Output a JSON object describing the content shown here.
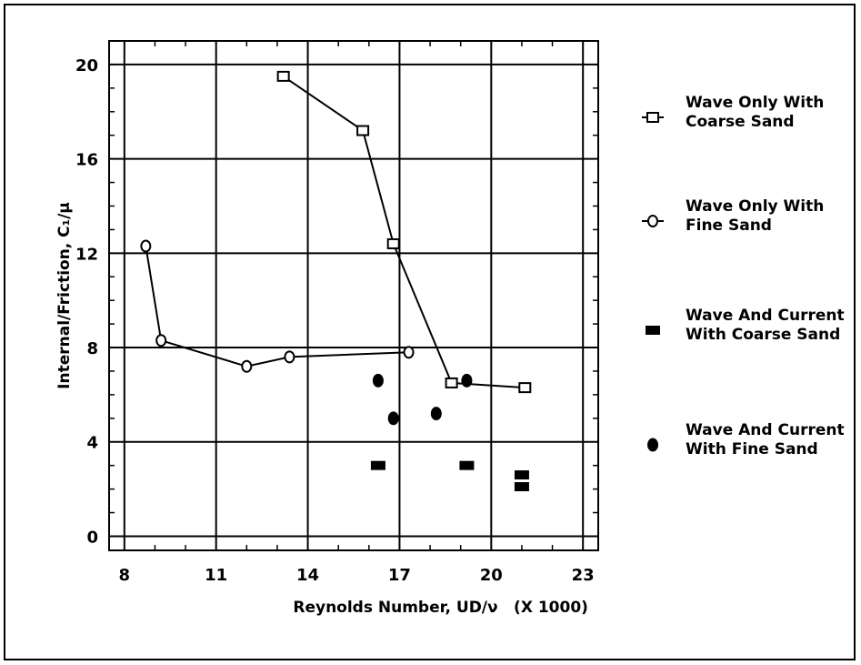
{
  "chart_data": {
    "type": "scatter",
    "xlabel": "Reynolds Number, UD/ν",
    "x_multiplier_label": "(X 1000)",
    "ylabel": "Internal/Friction, C₁/μ",
    "xlim": [
      7.5,
      23.5
    ],
    "ylim": [
      -0.6,
      21.0
    ],
    "x_ticks": [
      8,
      11,
      14,
      17,
      20,
      23
    ],
    "y_ticks": [
      0,
      4,
      8,
      12,
      16,
      20
    ],
    "grid": true,
    "legend_position": "right",
    "series": [
      {
        "name": "Wave Only With Coarse Sand",
        "legend_lines": [
          "Wave Only With",
          "Coarse Sand"
        ],
        "marker": "open-square",
        "connected": true,
        "points": [
          {
            "x": 13.2,
            "y": 19.5
          },
          {
            "x": 15.8,
            "y": 17.2
          },
          {
            "x": 16.8,
            "y": 12.4
          },
          {
            "x": 18.7,
            "y": 6.5
          },
          {
            "x": 21.1,
            "y": 6.3
          }
        ]
      },
      {
        "name": "Wave Only With Fine Sand",
        "legend_lines": [
          "Wave Only With",
          "Fine Sand"
        ],
        "marker": "open-circle",
        "connected": true,
        "points": [
          {
            "x": 8.7,
            "y": 12.3
          },
          {
            "x": 9.2,
            "y": 8.3
          },
          {
            "x": 12.0,
            "y": 7.2
          },
          {
            "x": 13.4,
            "y": 7.6
          },
          {
            "x": 17.3,
            "y": 7.8
          }
        ]
      },
      {
        "name": "Wave And Current With Coarse Sand",
        "legend_lines": [
          "Wave And Current",
          "With Coarse Sand"
        ],
        "marker": "filled-square",
        "connected": false,
        "points": [
          {
            "x": 16.3,
            "y": 3.0
          },
          {
            "x": 19.2,
            "y": 3.0
          },
          {
            "x": 21.0,
            "y": 2.6
          },
          {
            "x": 21.0,
            "y": 2.1
          }
        ]
      },
      {
        "name": "Wave And Current With Fine Sand",
        "legend_lines": [
          "Wave And Current",
          "With Fine Sand"
        ],
        "marker": "filled-circle",
        "connected": false,
        "points": [
          {
            "x": 16.3,
            "y": 6.6
          },
          {
            "x": 16.8,
            "y": 5.0
          },
          {
            "x": 18.2,
            "y": 5.2
          },
          {
            "x": 19.2,
            "y": 6.6
          }
        ]
      }
    ]
  }
}
